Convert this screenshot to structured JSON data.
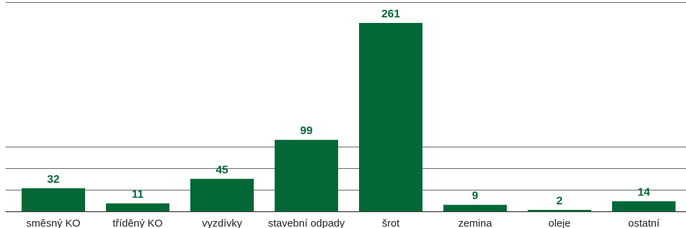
{
  "chart_data": {
    "type": "bar",
    "categories": [
      "směsný KO",
      "tříděný KO",
      "vyzdívky",
      "stavební odpady",
      "šrot",
      "zemina",
      "oleje",
      "ostatní"
    ],
    "values": [
      32,
      11,
      45,
      99,
      261,
      9,
      2,
      14
    ],
    "ylim": [
      0,
      300
    ],
    "grid": true,
    "legend": "none",
    "colors": {
      "bar": "#036836",
      "label": "#036836",
      "grid": "#333333"
    }
  }
}
